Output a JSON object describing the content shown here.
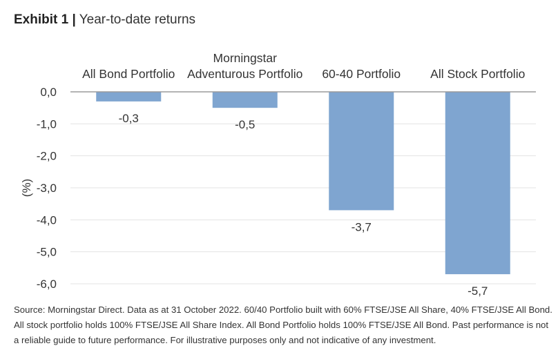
{
  "title": {
    "exhibit": "Exhibit 1",
    "separator": "|",
    "subtitle": "Year-to-date returns"
  },
  "chart_data": {
    "type": "bar",
    "title": "Year-to-date returns",
    "categories": [
      [
        "All Bond Portfolio"
      ],
      [
        "Morningstar",
        "Adventurous Portfolio"
      ],
      [
        "60-40 Portfolio"
      ],
      [
        "All Stock Portfolio"
      ]
    ],
    "values": [
      -0.3,
      -0.5,
      -3.7,
      -5.7
    ],
    "value_labels": [
      "-0,3",
      "-0,5",
      "-3,7",
      "-5,7"
    ],
    "ylabel": "(%)",
    "ylim": [
      -6.0,
      0.0
    ],
    "yticks": [
      0.0,
      -1.0,
      -2.0,
      -3.0,
      -4.0,
      -5.0,
      -6.0
    ],
    "ytick_labels": [
      "0,0",
      "-1,0",
      "-2,0",
      "-3,0",
      "-4,0",
      "-5,0",
      "-6,0"
    ],
    "xaxis_position": "top",
    "grid": true,
    "bar_color": "#7fa5d0",
    "grid_color": "#e3e3e3",
    "axis_color": "#9a9a9a"
  },
  "source": {
    "lines": [
      "Source: Morningstar Direct. Data as at 31 October 2022. 60/40 Portfolio built with 60% FTSE/JSE All Share, 40% FTSE/JSE All Bond.",
      "All stock portfolio holds 100% FTSE/JSE All Share Index. All Bond Portfolio holds 100% FTSE/JSE All Bond. Past performance is not",
      "a reliable guide to future performance. For illustrative purposes only and not indicative of any investment."
    ]
  }
}
